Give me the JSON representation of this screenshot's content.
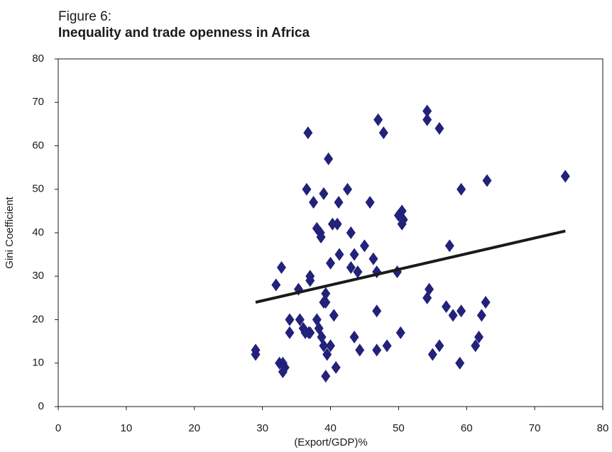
{
  "chart_data": {
    "type": "scatter",
    "title": "Figure 6:",
    "subtitle": "Inequality and trade openness in Africa",
    "x_label": "(Export/GDP)%",
    "y_label": "Gini Coefficient",
    "xlim": [
      0,
      80
    ],
    "ylim": [
      0,
      80
    ],
    "xticks": [
      0,
      10,
      20,
      30,
      40,
      50,
      60,
      70,
      80
    ],
    "yticks": [
      0,
      10,
      20,
      30,
      40,
      50,
      60,
      70,
      80
    ],
    "grid": false,
    "series": [
      {
        "color": "#22227a",
        "x": [
          29,
          29,
          32,
          32.5,
          32.8,
          33,
          33.3,
          33,
          34,
          34,
          35.3,
          35.5,
          36,
          36.3,
          36.5,
          36.7,
          36.8,
          37,
          37,
          37.5,
          37,
          38,
          38,
          38.3,
          38.5,
          38.6,
          38.7,
          39,
          39,
          39,
          39.3,
          39.3,
          39.5,
          39.7,
          40,
          40,
          40.3,
          40.5,
          40.8,
          39.3,
          41,
          41.2,
          41.3,
          42.5,
          43,
          43,
          43.5,
          43.5,
          44,
          44.3,
          45,
          45.8,
          46.3,
          46.8,
          46.8,
          47,
          46.8,
          47.8,
          48.3,
          49.8,
          50,
          50.5,
          50.5,
          50.7,
          50.3,
          54.2,
          54.2,
          54.2,
          54.5,
          55,
          56,
          56,
          57,
          57.5,
          58,
          59,
          59.2,
          59.2,
          61.3,
          61.8,
          62.2,
          62.8,
          63,
          74.5
        ],
        "values": [
          13,
          12,
          28,
          10,
          32,
          8,
          9,
          10,
          20,
          17,
          27,
          20,
          18,
          17,
          50,
          63,
          17,
          30,
          29,
          47,
          17,
          20,
          41,
          18,
          40,
          39,
          16,
          49,
          24,
          14,
          26,
          24,
          12,
          57,
          33,
          14,
          42,
          21,
          9,
          7,
          42,
          47,
          35,
          50,
          40,
          32,
          35,
          16,
          31,
          13,
          37,
          47,
          34,
          31,
          22,
          66,
          13,
          63,
          14,
          31,
          44,
          45,
          42,
          43,
          17,
          68,
          66,
          25,
          27,
          12,
          64,
          14,
          23,
          37,
          21,
          10,
          50,
          22,
          14,
          16,
          21,
          24,
          52,
          53
        ]
      }
    ],
    "trendline": {
      "x": [
        29,
        74.5
      ],
      "values": [
        24,
        40.4
      ],
      "color": "#1a1a1a"
    }
  }
}
